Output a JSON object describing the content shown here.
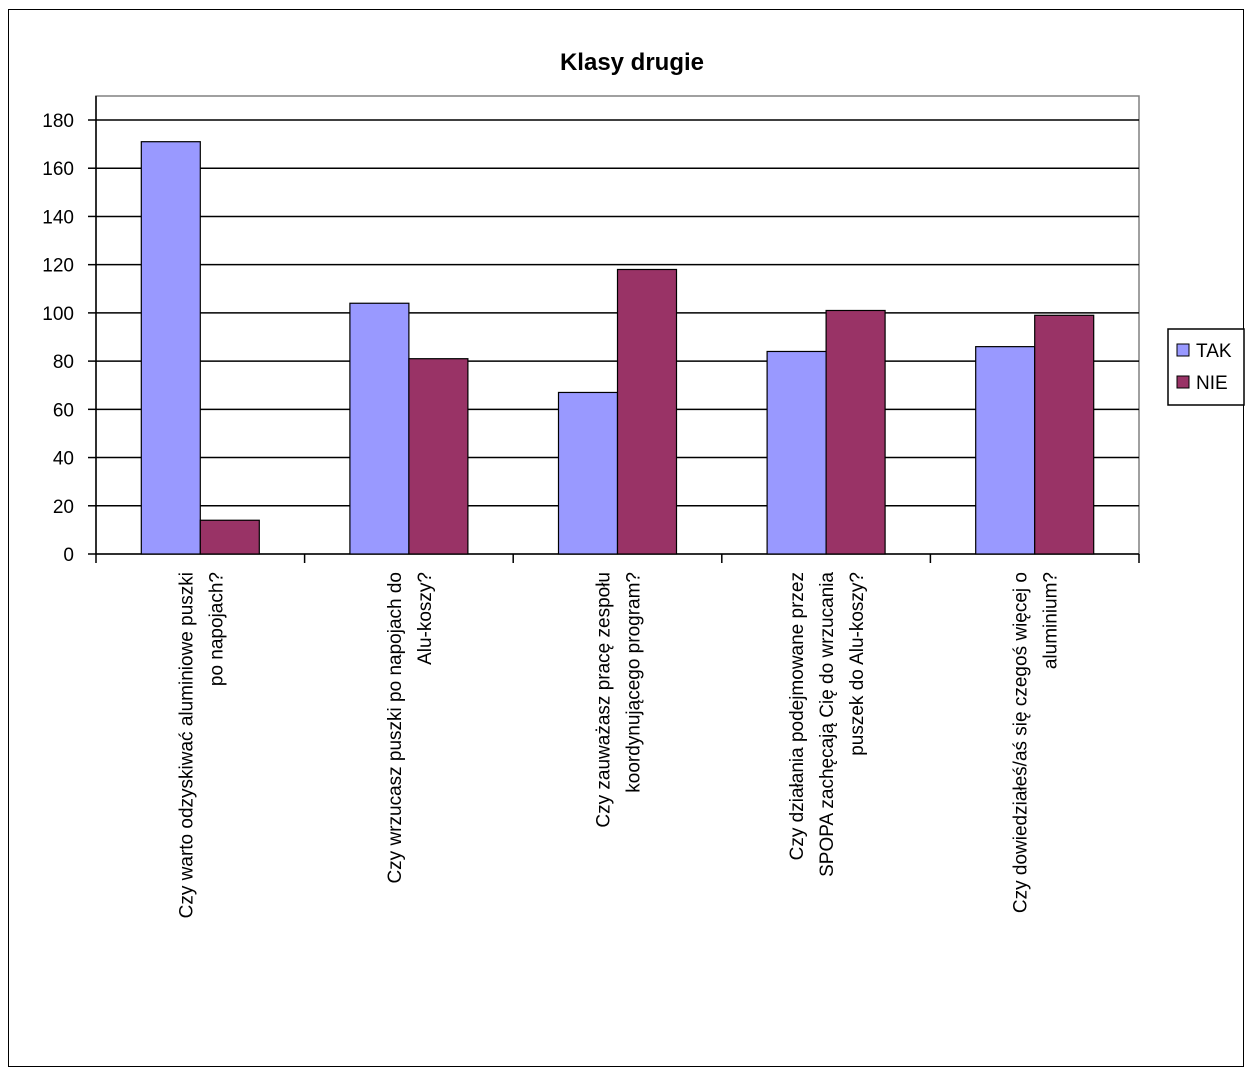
{
  "chart_data": {
    "type": "bar",
    "title": "Klasy drugie",
    "categories": [
      [
        "Czy warto odzyskiwać aluminiowe puszki",
        "po napojach?"
      ],
      [
        "Czy wrzucasz puszki po napojach do",
        "Alu-koszy?"
      ],
      [
        "Czy zauważasz pracę zespołu",
        "koordynującego program?"
      ],
      [
        "Czy działania podejmowane przez",
        "SPOPA zachęcają Cię do wrzucania",
        "puszek do Alu-koszy?"
      ],
      [
        "Czy dowiedziałeś/aś się czegoś więcej o",
        "aluminium?"
      ]
    ],
    "series": [
      {
        "name": "TAK",
        "color": "#9999ff",
        "values": [
          171,
          104,
          67,
          84,
          86
        ]
      },
      {
        "name": "NIE",
        "color": "#993366",
        "values": [
          14,
          81,
          118,
          101,
          99
        ]
      }
    ],
    "ylim": [
      0,
      180
    ],
    "yticks": [
      0,
      20,
      40,
      60,
      80,
      100,
      120,
      140,
      160,
      180
    ],
    "grid": true,
    "legend": "right"
  }
}
